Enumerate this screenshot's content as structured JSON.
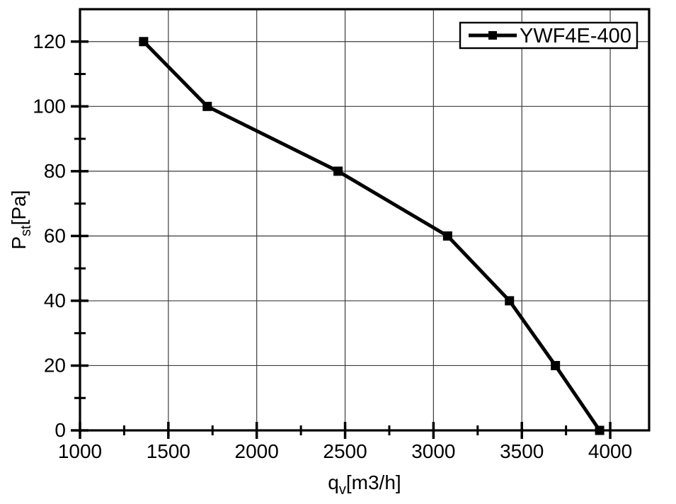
{
  "colors": {
    "foreground": "#000000",
    "grid": "#3c3c3c",
    "background": "#ffffff",
    "series": "#000000"
  },
  "chart_data": {
    "type": "line",
    "title": "",
    "xlabel": "qv[m3/h]",
    "ylabel": "Pst[Pa]",
    "xlabel_parts": [
      {
        "text": "q"
      },
      {
        "text": "v",
        "sub": true
      },
      {
        "text": "[m3/h]"
      }
    ],
    "ylabel_parts": [
      {
        "text": "P"
      },
      {
        "text": "st",
        "sub": true
      },
      {
        "text": "[Pa]"
      }
    ],
    "xlim": [
      1000,
      4220
    ],
    "ylim": [
      0,
      130
    ],
    "xticks": [
      1000,
      1500,
      2000,
      2500,
      3000,
      3500,
      4000
    ],
    "yticks": [
      0,
      20,
      40,
      60,
      80,
      100,
      120
    ],
    "minor_xticks": [
      1250,
      1750,
      2250,
      2750,
      3250,
      3750
    ],
    "minor_yticks": [
      10,
      30,
      50,
      70,
      90,
      110
    ],
    "grid": true,
    "legend_position": "top-right",
    "series": [
      {
        "name": "YWF4E-400",
        "marker": "square",
        "color": "#000000",
        "x": [
          1360,
          1720,
          2460,
          3080,
          3430,
          3690,
          3940
        ],
        "y": [
          120,
          100,
          80,
          60,
          40,
          20,
          0
        ]
      }
    ]
  }
}
